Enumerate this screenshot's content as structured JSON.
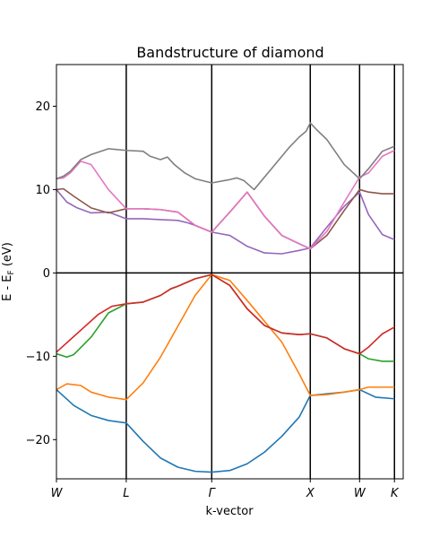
{
  "chart_data": {
    "type": "line",
    "title": "Bandstructure of diamond",
    "xlabel": "k-vector",
    "ylabel": {
      "prefix": "E - E",
      "sub": "F",
      "suffix": " (eV)"
    },
    "xlim": [
      0,
      1
    ],
    "ylim": [
      -24.7,
      25
    ],
    "yticks": [
      -20,
      -10,
      0,
      10,
      20
    ],
    "ytick_labels": [
      "−20",
      "−10",
      "0",
      "10",
      "20"
    ],
    "high_symmetry_points": [
      {
        "label": "W",
        "x": 0.0
      },
      {
        "label": "L",
        "x": 0.2013
      },
      {
        "label": "Γ",
        "x": 0.4478
      },
      {
        "label": "X",
        "x": 0.732
      },
      {
        "label": "W",
        "x": 0.8742
      },
      {
        "label": "K",
        "x": 0.9748
      }
    ],
    "fermi_level": 0,
    "series": [
      {
        "color": "#1f77b4",
        "x": [
          0.0,
          0.05,
          0.1,
          0.15,
          0.2013,
          0.25,
          0.3,
          0.35,
          0.4,
          0.4478,
          0.5,
          0.55,
          0.6,
          0.65,
          0.7,
          0.732,
          0.78,
          0.83,
          0.8742,
          0.92,
          0.9748
        ],
        "y": [
          -14.0,
          -15.9,
          -17.1,
          -17.7,
          -18.0,
          -20.2,
          -22.2,
          -23.3,
          -23.8,
          -23.9,
          -23.7,
          -22.9,
          -21.5,
          -19.6,
          -17.3,
          -14.7,
          -14.5,
          -14.3,
          -14.0,
          -14.9,
          -15.1
        ]
      },
      {
        "color": "#ff7f0e",
        "x": [
          0.0,
          0.03,
          0.07,
          0.1,
          0.15,
          0.2013,
          0.25,
          0.3,
          0.35,
          0.4,
          0.4478,
          0.5,
          0.55,
          0.6,
          0.65,
          0.7,
          0.732,
          0.78,
          0.83,
          0.8742,
          0.9,
          0.94,
          0.9748
        ],
        "y": [
          -14.0,
          -13.3,
          -13.5,
          -14.3,
          -14.9,
          -15.2,
          -13.2,
          -10.1,
          -6.4,
          -2.7,
          -0.2,
          -0.9,
          -3.3,
          -5.8,
          -8.3,
          -12.1,
          -14.7,
          -14.6,
          -14.3,
          -14.0,
          -13.7,
          -13.7,
          -13.7
        ]
      },
      {
        "color": "#2ca02c",
        "x": [
          0.0,
          0.03,
          0.05,
          0.1,
          0.15,
          0.2013,
          0.25,
          0.3,
          0.33,
          0.35,
          0.4,
          0.4478,
          0.5,
          0.55,
          0.6,
          0.65,
          0.7,
          0.732,
          0.78,
          0.83,
          0.8742,
          0.9,
          0.94,
          0.9748
        ],
        "y": [
          -9.7,
          -10.1,
          -9.8,
          -7.7,
          -4.8,
          -3.7,
          -3.5,
          -2.7,
          -1.9,
          -1.6,
          -0.7,
          -0.2,
          -1.5,
          -4.3,
          -6.3,
          -7.2,
          -7.4,
          -7.3,
          -7.8,
          -9.1,
          -9.7,
          -10.3,
          -10.6,
          -10.6
        ]
      },
      {
        "color": "#d62728",
        "x": [
          0.0,
          0.04,
          0.08,
          0.12,
          0.16,
          0.2013,
          0.25,
          0.3,
          0.33,
          0.35,
          0.4,
          0.4478,
          0.5,
          0.55,
          0.6,
          0.65,
          0.7,
          0.732,
          0.78,
          0.83,
          0.8742,
          0.9,
          0.94,
          0.9748
        ],
        "y": [
          -9.5,
          -8.0,
          -6.5,
          -5.0,
          -4.0,
          -3.7,
          -3.5,
          -2.7,
          -1.9,
          -1.6,
          -0.7,
          -0.2,
          -1.5,
          -4.3,
          -6.3,
          -7.2,
          -7.4,
          -7.3,
          -7.8,
          -9.1,
          -9.7,
          -8.9,
          -7.3,
          -6.5
        ]
      },
      {
        "color": "#9467bd",
        "x": [
          0.0,
          0.03,
          0.06,
          0.1,
          0.15,
          0.2013,
          0.25,
          0.3,
          0.35,
          0.38,
          0.4,
          0.4478,
          0.5,
          0.55,
          0.6,
          0.65,
          0.7,
          0.732,
          0.78,
          0.83,
          0.8742,
          0.9,
          0.94,
          0.9748
        ],
        "y": [
          10.0,
          8.5,
          7.8,
          7.2,
          7.3,
          6.5,
          6.5,
          6.4,
          6.3,
          6.0,
          5.7,
          4.9,
          4.5,
          3.2,
          2.4,
          2.3,
          2.7,
          3.0,
          5.5,
          8.0,
          9.7,
          7.0,
          4.6,
          4.0
        ]
      },
      {
        "color": "#8c564b",
        "x": [
          0.0,
          0.02,
          0.05,
          0.1,
          0.15,
          0.2013,
          0.25,
          0.3,
          0.35,
          0.4,
          0.4478,
          0.5,
          0.55,
          0.6,
          0.65,
          0.7,
          0.732,
          0.78,
          0.83,
          0.8742,
          0.9,
          0.94,
          0.9748
        ],
        "y": [
          10.0,
          10.1,
          9.2,
          7.8,
          7.2,
          7.7,
          7.7,
          7.6,
          7.3,
          5.7,
          4.9,
          7.3,
          9.7,
          6.8,
          4.5,
          3.5,
          2.9,
          4.5,
          7.5,
          10.0,
          9.7,
          9.5,
          9.5
        ]
      },
      {
        "color": "#e377c2",
        "x": [
          0.0,
          0.02,
          0.04,
          0.07,
          0.1,
          0.15,
          0.2013,
          0.25,
          0.3,
          0.35,
          0.4,
          0.4478,
          0.5,
          0.55,
          0.6,
          0.65,
          0.7,
          0.732,
          0.78,
          0.83,
          0.8742,
          0.9,
          0.94,
          0.9748
        ],
        "y": [
          11.3,
          11.4,
          12.0,
          13.4,
          13.0,
          10.0,
          7.7,
          7.7,
          7.6,
          7.3,
          5.7,
          4.9,
          7.3,
          9.7,
          6.8,
          4.5,
          3.5,
          2.9,
          5.0,
          8.5,
          11.5,
          12.0,
          14.0,
          14.7
        ]
      },
      {
        "color": "#7f7f7f",
        "x": [
          0.0,
          0.02,
          0.04,
          0.07,
          0.1,
          0.15,
          0.2013,
          0.25,
          0.27,
          0.3,
          0.32,
          0.34,
          0.37,
          0.4,
          0.4478,
          0.5,
          0.52,
          0.54,
          0.57,
          0.62,
          0.67,
          0.7,
          0.72,
          0.732,
          0.75,
          0.78,
          0.83,
          0.8742,
          0.9,
          0.94,
          0.9748
        ],
        "y": [
          11.3,
          11.6,
          12.2,
          13.6,
          14.2,
          14.9,
          14.7,
          14.6,
          14.0,
          13.6,
          13.9,
          13.0,
          12.0,
          11.3,
          10.8,
          11.2,
          11.4,
          11.1,
          10.0,
          12.5,
          15.0,
          16.3,
          17.0,
          18.0,
          17.2,
          16.0,
          13.0,
          11.3,
          12.5,
          14.6,
          15.2
        ]
      }
    ]
  }
}
